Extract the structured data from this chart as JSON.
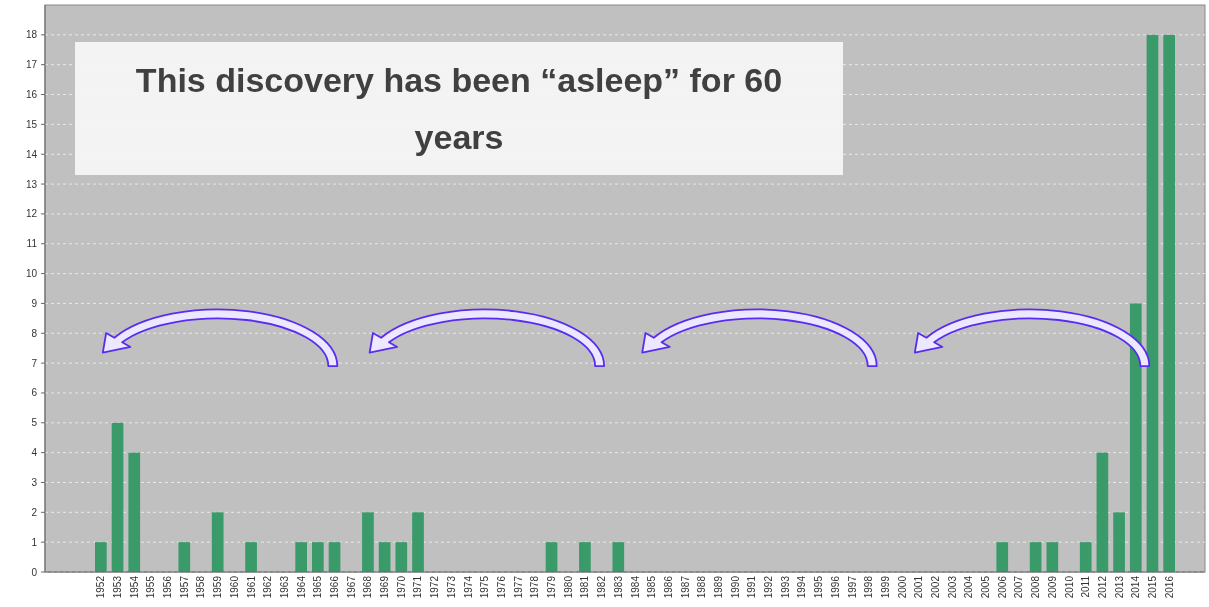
{
  "chart_data": {
    "type": "bar",
    "annotations": [
      "This discovery has been “asleep” for 60 years"
    ],
    "categories": [
      "1952",
      "1953",
      "1954",
      "1955",
      "1956",
      "1957",
      "1958",
      "1959",
      "1960",
      "1961",
      "1962",
      "1963",
      "1964",
      "1965",
      "1966",
      "1967",
      "1968",
      "1969",
      "1970",
      "1971",
      "1972",
      "1973",
      "1974",
      "1975",
      "1976",
      "1977",
      "1978",
      "1979",
      "1980",
      "1981",
      "1982",
      "1983",
      "1984",
      "1985",
      "1986",
      "1987",
      "1988",
      "1989",
      "1990",
      "1991",
      "1992",
      "1993",
      "1994",
      "1995",
      "1996",
      "1997",
      "1998",
      "1999",
      "2000",
      "2001",
      "2002",
      "2003",
      "2004",
      "2005",
      "2006",
      "2007",
      "2008",
      "2009",
      "2010",
      "2011",
      "2012",
      "2013",
      "2014",
      "2015",
      "2016"
    ],
    "values": [
      1,
      5,
      4,
      0,
      0,
      1,
      0,
      2,
      0,
      1,
      0,
      0,
      1,
      1,
      1,
      0,
      2,
      1,
      1,
      2,
      0,
      0,
      0,
      0,
      0,
      0,
      0,
      1,
      0,
      1,
      0,
      1,
      0,
      0,
      0,
      0,
      0,
      0,
      0,
      0,
      0,
      0,
      0,
      0,
      0,
      0,
      0,
      0,
      0,
      0,
      0,
      0,
      0,
      0,
      1,
      0,
      1,
      1,
      0,
      1,
      4,
      2,
      9,
      18,
      18
    ],
    "color": "#3a9a6a",
    "ylim": [
      0,
      19
    ],
    "yticks": [
      0,
      1,
      2,
      3,
      4,
      5,
      6,
      7,
      8,
      9,
      10,
      11,
      12,
      13,
      14,
      15,
      16,
      17,
      18
    ],
    "grid": "y"
  }
}
